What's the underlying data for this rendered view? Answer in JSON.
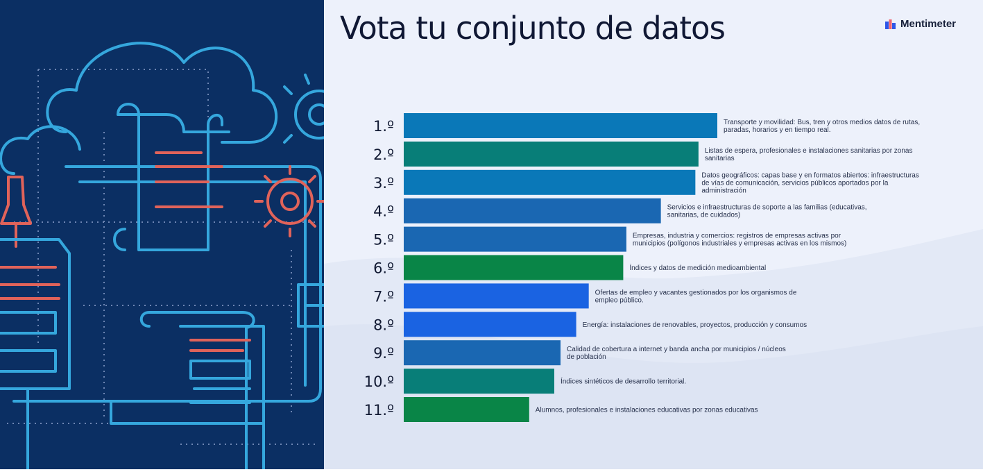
{
  "slide": {
    "title": "Vota tu conjunto de datos",
    "brand": "Mentimeter"
  },
  "illustration": {
    "icons": [
      "cloud-icon",
      "document-scroll-icon",
      "gear-icon",
      "pushpin-icon",
      "monitor-icon",
      "server-icon"
    ],
    "colors": {
      "background": "#0b2f63",
      "line": "#35a7dd",
      "accent": "#e0635a"
    }
  },
  "chart_data": {
    "type": "bar",
    "orientation": "horizontal",
    "value_axis_shown": false,
    "categories": [
      "Transporte y movilidad: Bus, tren y otros medios datos de rutas, paradas, horarios y en tiempo real.",
      "Listas de espera, profesionales e instalaciones sanitarias por zonas sanitarias",
      "Datos geográficos: capas base y en formatos abiertos: infraestructuras de vías de comunicación, servicios públicos aportados por la administración",
      "Servicios e infraestructuras de soporte a las familias (educativas, sanitarias, de cuidados)",
      "Empresas, industria y comercios: registros de empresas activas por municipios (polígonos industriales y empresas activas en los mismos)",
      "Índices y datos de medición medioambiental",
      "Ofertas de empleo y vacantes gestionados por los organismos de empleo público.",
      "Energía: instalaciones de renovables, proyectos, producción y consumos",
      "Calidad de cobertura a internet y banda ancha por municipios / núcleos de población",
      "Índices sintéticos de desarrollo territorial.",
      "Alumnos, profesionales e instalaciones educativas por zonas educativas"
    ],
    "label_lines": [
      [
        "Transporte y movilidad: Bus, tren y otros medios datos de rutas,",
        "paradas, horarios y en tiempo real."
      ],
      [
        "Listas de espera, profesionales e instalaciones sanitarias por zonas",
        "sanitarias"
      ],
      [
        "Datos geográficos: capas base y en formatos abiertos: infraestructuras",
        "de vías de comunicación, servicios públicos aportados por la",
        "administración"
      ],
      [
        "Servicios e infraestructuras de soporte a las familias (educativas,",
        "sanitarias, de cuidados)"
      ],
      [
        "Empresas, industria y comercios: registros de empresas activas por",
        "municipios (polígonos industriales y empresas activas en los mismos)"
      ],
      [
        "Índices y datos de medición medioambiental"
      ],
      [
        "Ofertas de empleo y vacantes gestionados por los organismos de",
        "empleo público."
      ],
      [
        "Energía: instalaciones de renovables, proyectos, producción y consumos"
      ],
      [
        "Calidad de cobertura a internet y banda ancha por municipios / núcleos",
        "de población"
      ],
      [
        "Índices sintéticos de desarrollo territorial."
      ],
      [
        "Alumnos, profesionales e instalaciones educativas por zonas educativas"
      ]
    ],
    "ranks": [
      "1.º",
      "2.º",
      "3.º",
      "4.º",
      "5.º",
      "6.º",
      "7.º",
      "8.º",
      "9.º",
      "10.º",
      "11.º"
    ],
    "values": [
      100,
      94,
      93,
      82,
      71,
      70,
      59,
      55,
      50,
      48,
      40
    ],
    "value_unit": "relative bar length (% of top bar)",
    "colors": [
      "#0a78b8",
      "#087e78",
      "#0a78b8",
      "#1a67b2",
      "#1a67b2",
      "#098547",
      "#1a63e2",
      "#1a63e2",
      "#1a67b2",
      "#087e78",
      "#098547"
    ]
  }
}
